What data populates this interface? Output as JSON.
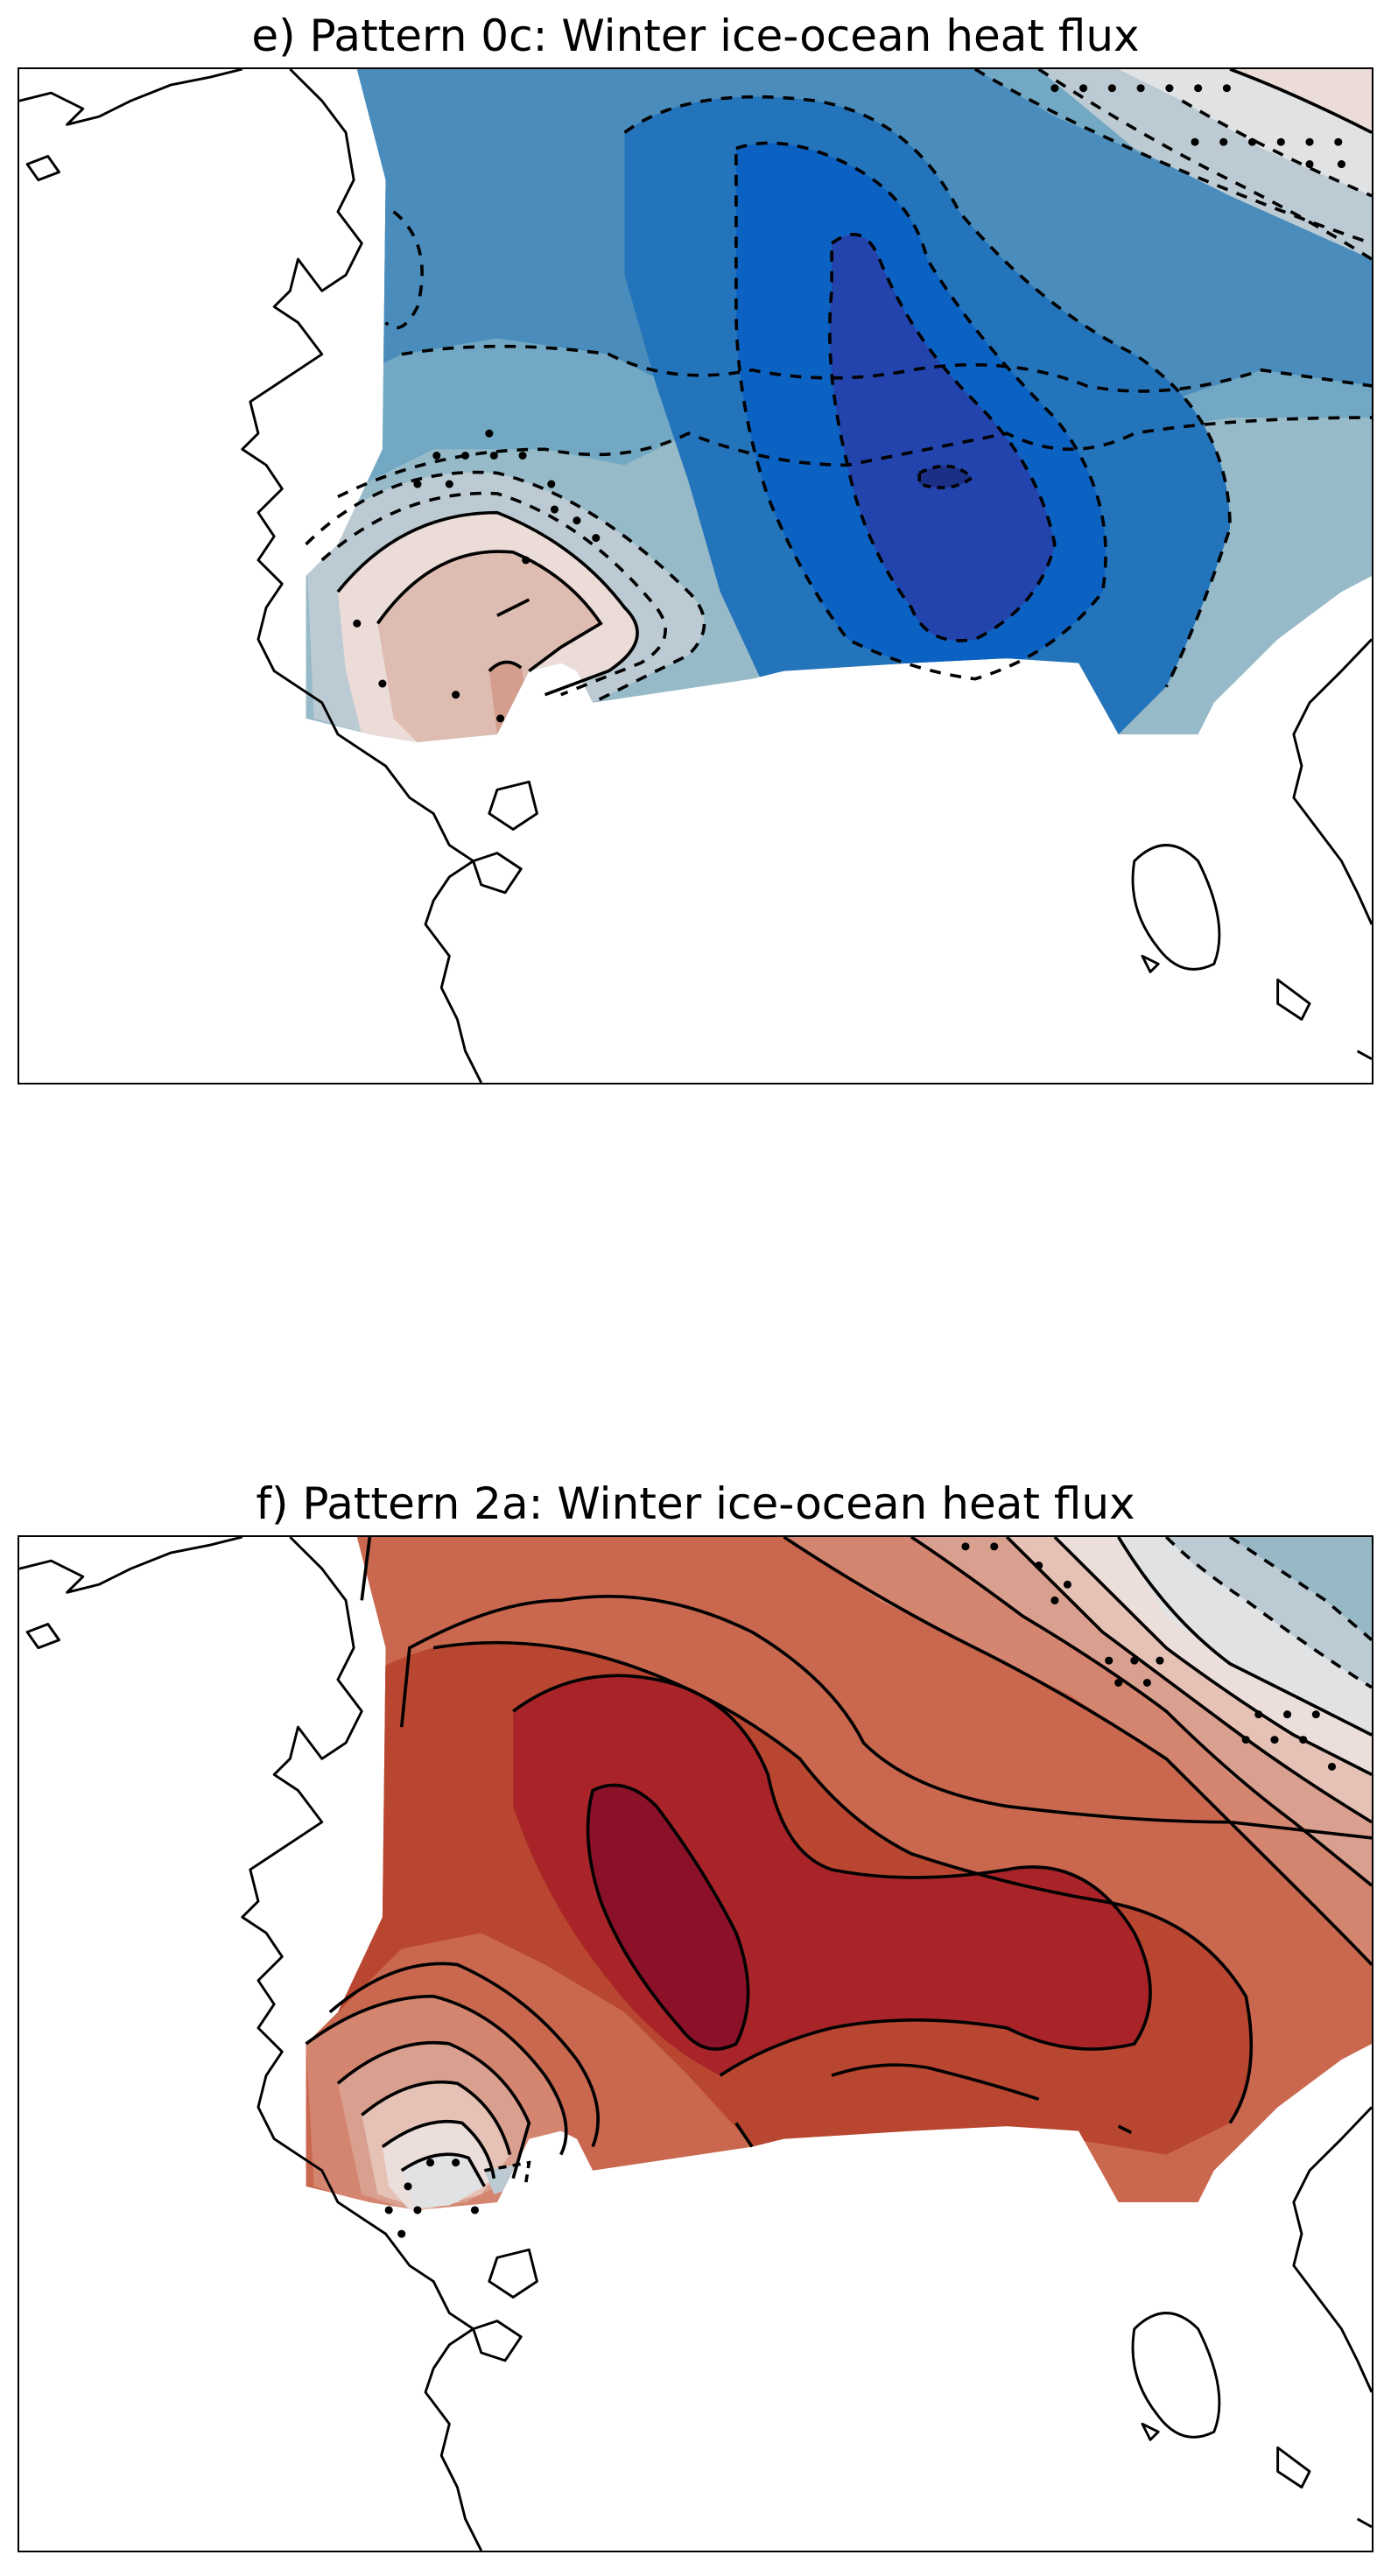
{
  "panels": [
    {
      "id": "e",
      "title": "e) Pattern 0c: Winter ice-ocean heat flux",
      "field_colors": {
        "strong_negative": "#2344ad",
        "negative_mid": "#0c62c2",
        "negative": "#2474bb",
        "weak_negative": "#4a8dbd",
        "slight_negative": "#72a8c4",
        "near_zero_negative": "#97bac8",
        "near_zero": "#bccbd3",
        "neutral": "#e1e2e4",
        "slight_positive": "#ecdcd8",
        "weak_positive": "#dfbcb1",
        "positive": "#d39e8e"
      },
      "contour_styles": {
        "negative": "dashed",
        "positive": "solid"
      },
      "significance_marker": "stippling-dots"
    },
    {
      "id": "f",
      "title": "f) Pattern 2a: Winter ice-ocean heat flux",
      "field_colors": {
        "strongest_positive": "#8a1128",
        "strong_positive": "#a82428",
        "positive_mid": "#b94631",
        "positive": "#c9684e",
        "weak_positive": "#d48570",
        "slight_positive": "#daa08f",
        "near_zero_positive": "#e6c2b6",
        "near_zero": "#ecdfdb",
        "neutral": "#e1e2e4",
        "slight_negative": "#bccbd3",
        "weak_negative": "#97b9c6"
      },
      "contour_styles": {
        "negative": "dashed",
        "positive": "solid"
      },
      "significance_marker": "stippling-dots"
    }
  ],
  "map_style": {
    "coastline_color": "#000000",
    "land_color": "#ffffff",
    "frame_color": "#000000"
  }
}
